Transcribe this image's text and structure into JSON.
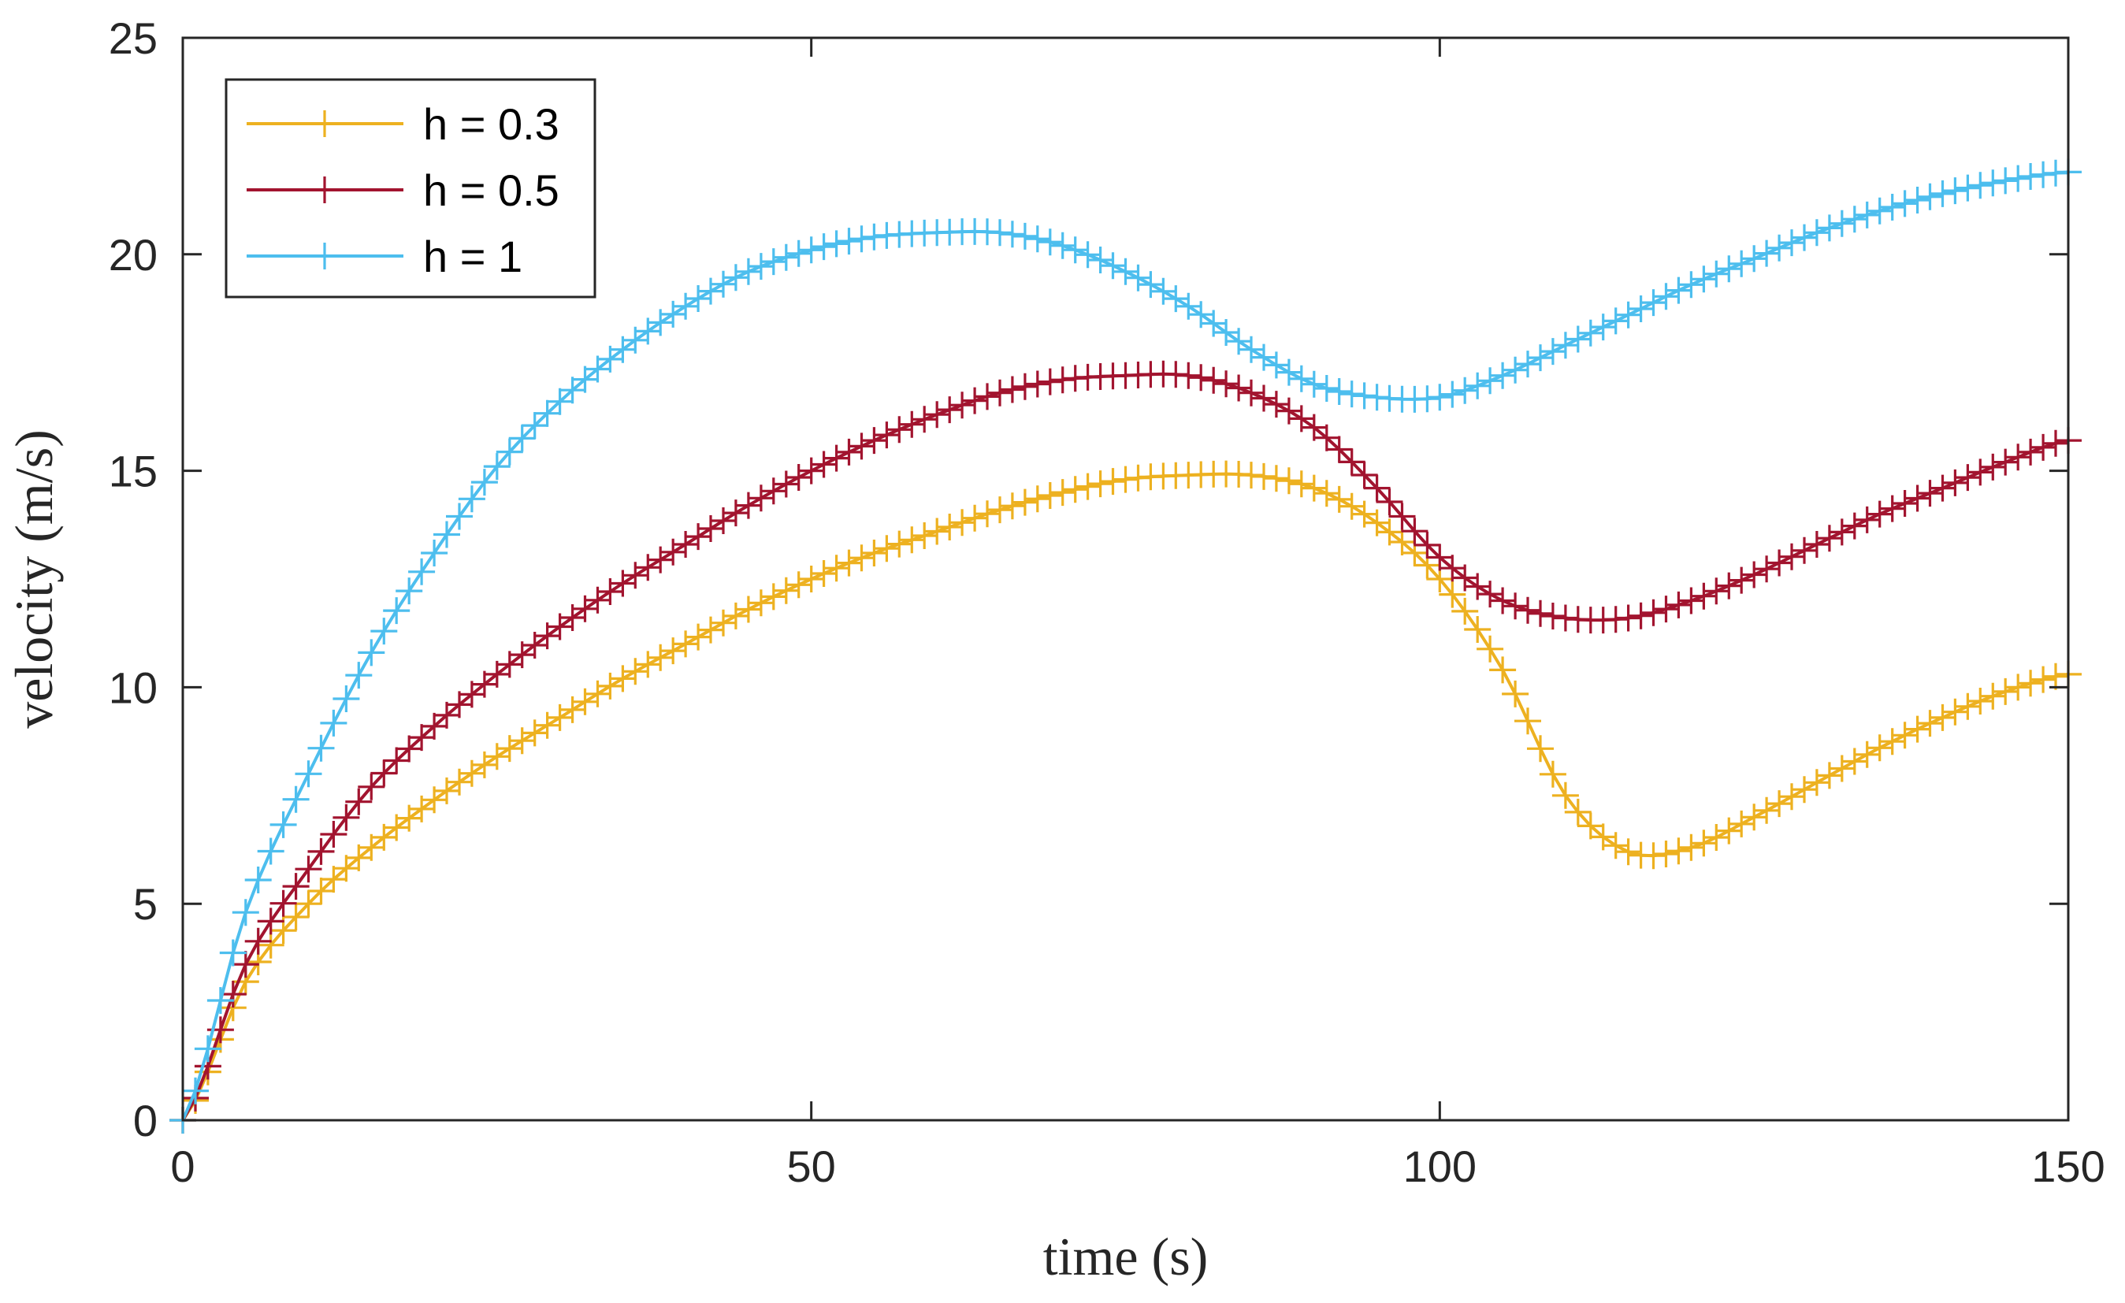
{
  "chart_data": {
    "type": "line",
    "title": "",
    "xlabel": "time (s)",
    "ylabel": "velocity (m/s)",
    "xlim": [
      0,
      150
    ],
    "ylim": [
      0,
      25
    ],
    "xticks": [
      0,
      50,
      100,
      150
    ],
    "yticks": [
      0,
      5,
      10,
      15,
      20,
      25
    ],
    "grid": false,
    "legend_position": "top-left",
    "marker": "plus",
    "marker_step": 1,
    "series": [
      {
        "name": "h = 0.3",
        "color": "#EDB120",
        "x": [
          0,
          5,
          10,
          15,
          20,
          25,
          30,
          35,
          40,
          45,
          50,
          55,
          60,
          65,
          70,
          75,
          80,
          85,
          90,
          95,
          100,
          105,
          110,
          115,
          120,
          125,
          130,
          135,
          140,
          145,
          150
        ],
        "y": [
          0,
          3.2,
          5.0,
          6.3,
          7.4,
          8.4,
          9.3,
          10.2,
          11.0,
          11.8,
          12.5,
          13.1,
          13.6,
          14.1,
          14.5,
          14.8,
          14.9,
          14.9,
          14.6,
          13.8,
          12.5,
          10.4,
          7.5,
          6.2,
          6.3,
          7.0,
          7.8,
          8.6,
          9.3,
          9.9,
          10.3
        ]
      },
      {
        "name": "h = 0.5",
        "color": "#A2142F",
        "x": [
          0,
          5,
          10,
          15,
          20,
          25,
          30,
          35,
          40,
          45,
          50,
          55,
          60,
          65,
          70,
          75,
          80,
          85,
          90,
          95,
          100,
          105,
          110,
          115,
          120,
          125,
          130,
          135,
          140,
          145,
          150
        ],
        "y": [
          0,
          3.6,
          5.8,
          7.7,
          9.1,
          10.3,
          11.4,
          12.4,
          13.3,
          14.2,
          15.0,
          15.7,
          16.3,
          16.8,
          17.1,
          17.2,
          17.2,
          16.8,
          16.0,
          14.6,
          13.0,
          12.0,
          11.6,
          11.6,
          12.0,
          12.6,
          13.3,
          14.0,
          14.6,
          15.2,
          15.7
        ]
      },
      {
        "name": "h = 1",
        "color": "#4DBEEE",
        "x": [
          0,
          5,
          10,
          15,
          20,
          25,
          30,
          35,
          40,
          45,
          50,
          55,
          60,
          65,
          70,
          75,
          80,
          85,
          90,
          95,
          100,
          105,
          110,
          115,
          120,
          125,
          130,
          135,
          140,
          145,
          150
        ],
        "y": [
          0,
          4.8,
          8.0,
          10.8,
          13.1,
          15.1,
          16.6,
          17.8,
          18.8,
          19.6,
          20.1,
          20.4,
          20.5,
          20.5,
          20.2,
          19.6,
          18.8,
          17.8,
          17.0,
          16.7,
          16.7,
          17.2,
          17.9,
          18.6,
          19.3,
          19.9,
          20.5,
          21.0,
          21.4,
          21.7,
          21.9
        ]
      }
    ]
  }
}
